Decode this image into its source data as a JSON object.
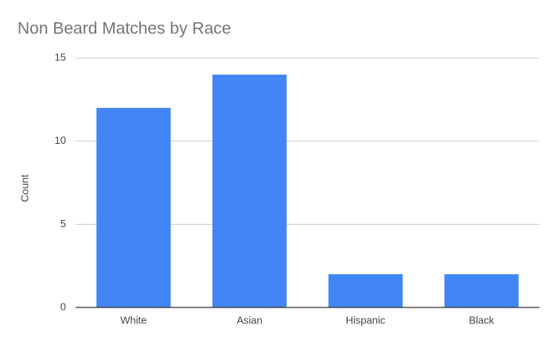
{
  "chart_data": {
    "type": "bar",
    "title": "Non Beard Matches by Race",
    "y_label": "Count",
    "categories": [
      "White",
      "Asian",
      "Hispanic",
      "Black"
    ],
    "values": [
      12,
      14,
      2,
      2
    ],
    "color": "#4285f4",
    "ylim": [
      0,
      15
    ],
    "yticks": [
      0,
      5,
      10,
      15
    ],
    "grid": true
  }
}
